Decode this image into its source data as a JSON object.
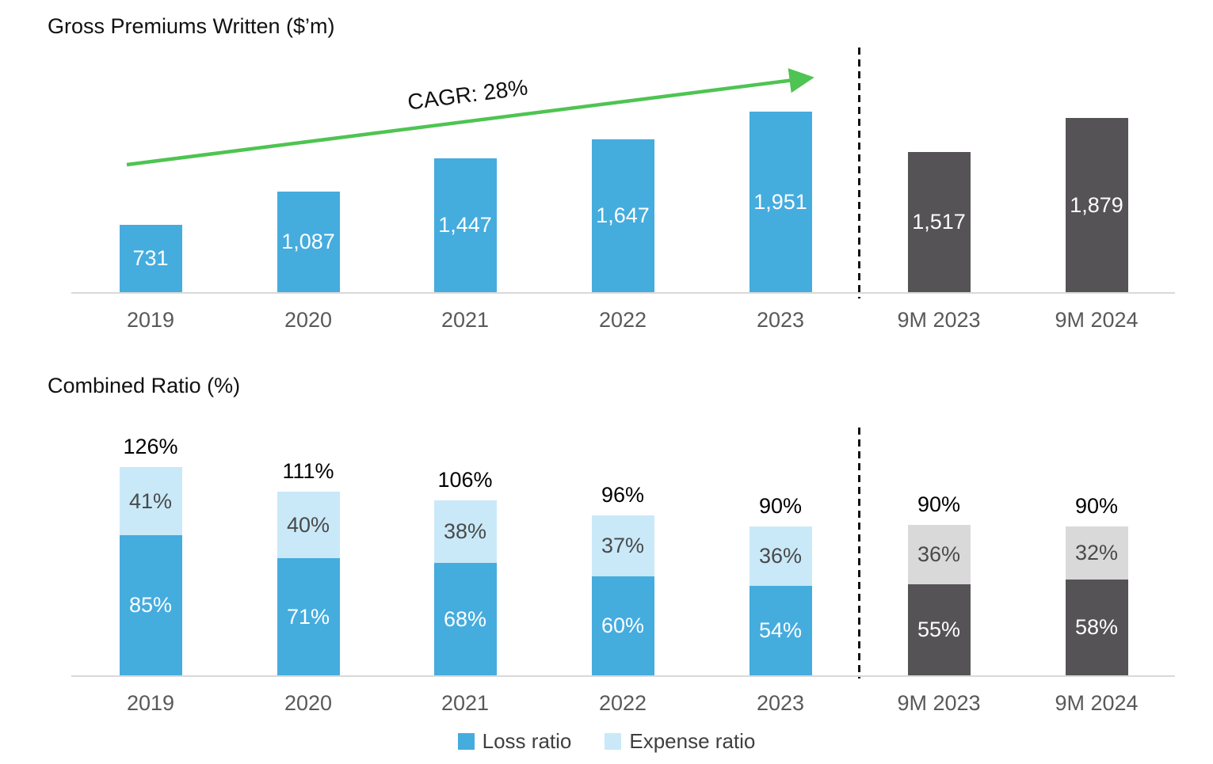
{
  "colors": {
    "blue": "#45ACDE",
    "light_blue": "#C9E9F8",
    "dark_gray": "#555355",
    "light_gray": "#D9D9D9",
    "green": "#4EC452",
    "axis_line": "#D9D9D9",
    "axis_label": "#595959",
    "segment_label_dark": "#4A4A4A",
    "title_text": "#111111"
  },
  "chart_data": [
    {
      "type": "bar",
      "title": "Gross Premiums Written ($’m)",
      "categories": [
        "2019",
        "2020",
        "2021",
        "2022",
        "2023",
        "9M 2023",
        "9M 2024"
      ],
      "values": [
        731,
        1087,
        1447,
        1647,
        1951,
        1517,
        1879
      ],
      "value_labels": [
        "731",
        "1,087",
        "1,447",
        "1,647",
        "1,951",
        "1,517",
        "1,879"
      ],
      "bar_groups": [
        "historical",
        "historical",
        "historical",
        "historical",
        "historical",
        "interim",
        "interim"
      ],
      "annotation": "CAGR: 28%",
      "divider_after_index": 4,
      "xlabel": "",
      "ylabel": "",
      "ylim": [
        0,
        2100
      ],
      "grid": false,
      "legend_position": "none"
    },
    {
      "type": "bar",
      "subtype": "stacked",
      "title": "Combined Ratio (%)",
      "categories": [
        "2019",
        "2020",
        "2021",
        "2022",
        "2023",
        "9M 2023",
        "9M 2024"
      ],
      "series": [
        {
          "name": "Loss ratio",
          "values": [
            85,
            71,
            68,
            60,
            54,
            55,
            58
          ]
        },
        {
          "name": "Expense ratio",
          "values": [
            41,
            40,
            38,
            37,
            36,
            36,
            32
          ]
        }
      ],
      "totals": [
        126,
        111,
        106,
        96,
        90,
        90,
        90
      ],
      "bar_groups": [
        "historical",
        "historical",
        "historical",
        "historical",
        "historical",
        "interim",
        "interim"
      ],
      "divider_after_index": 4,
      "xlabel": "",
      "ylabel": "",
      "ylim": [
        0,
        140
      ],
      "grid": false,
      "legend_position": "bottom"
    }
  ]
}
